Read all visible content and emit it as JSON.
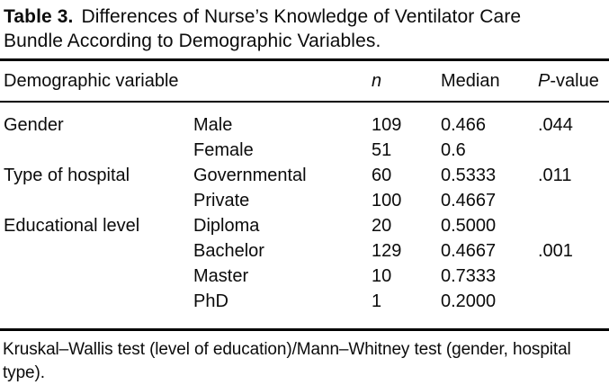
{
  "caption": {
    "label": "Table 3.",
    "line1": "Differences of Nurse’s Knowledge of Ventilator Care",
    "line2": "Bundle According to Demographic Variables."
  },
  "table": {
    "headers": {
      "demographic": "Demographic variable",
      "category": "",
      "n": "n",
      "median": "Median",
      "p_italic": "P",
      "p_rest": "-value"
    },
    "rows": [
      {
        "group": "Gender",
        "category": "Male",
        "n": "109",
        "median": "0.466",
        "p": ".044"
      },
      {
        "group": "",
        "category": "Female",
        "n": "51",
        "median": "0.6",
        "p": ""
      },
      {
        "group": "Type of hospital",
        "category": "Governmental",
        "n": "60",
        "median": "0.5333",
        "p": ".011"
      },
      {
        "group": "",
        "category": "Private",
        "n": "100",
        "median": "0.4667",
        "p": ""
      },
      {
        "group": "Educational level",
        "category": "Diploma",
        "n": "20",
        "median": "0.5000",
        "p": ""
      },
      {
        "group": "",
        "category": "Bachelor",
        "n": "129",
        "median": "0.4667",
        "p": ".001"
      },
      {
        "group": "",
        "category": "Master",
        "n": "10",
        "median": "0.7333",
        "p": ""
      },
      {
        "group": "",
        "category": "PhD",
        "n": "1",
        "median": "0.2000",
        "p": ""
      }
    ]
  },
  "footnote": "Kruskal–Wallis test (level of education)/Mann–Whitney test (gender, hospital type)."
}
